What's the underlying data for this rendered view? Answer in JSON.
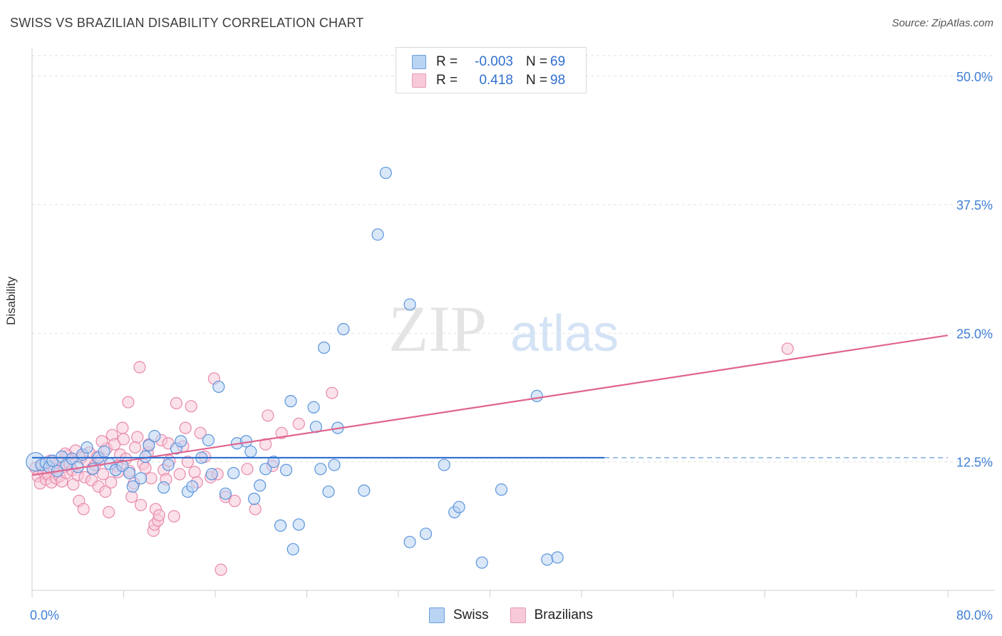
{
  "title": "SWISS VS BRAZILIAN DISABILITY CORRELATION CHART",
  "source": "Source: ZipAtlas.com",
  "watermark": {
    "zip": "ZIP",
    "atlas": "atlas"
  },
  "legend": {
    "rows": [
      {
        "r_label": "R =",
        "r_value": "-0.003",
        "n_label": "N =",
        "n_value": "69"
      },
      {
        "r_label": "R =",
        "r_value": "0.418",
        "n_label": "N =",
        "n_value": "98"
      }
    ]
  },
  "bottom_legend": {
    "swiss": "Swiss",
    "brazilians": "Brazilians"
  },
  "colors": {
    "swiss_fill": "#b9d3f2",
    "swiss_stroke": "#5b95dc",
    "swiss_line": "#2f6fcf",
    "braz_fill": "#f8c9d8",
    "braz_stroke": "#e88aab",
    "braz_line": "#e0648f",
    "tick_text": "#3f7fd6",
    "grid": "#e2e2e2"
  },
  "chart_data": {
    "type": "scatter",
    "title": "SWISS VS BRAZILIAN DISABILITY CORRELATION CHART",
    "xlabel": "",
    "ylabel": "Disability",
    "xlim": [
      0,
      80
    ],
    "ylim": [
      0,
      52
    ],
    "x_tick_labels": [
      "0.0%",
      "80.0%"
    ],
    "y_ticks": [
      12.5,
      25.0,
      37.5,
      50.0
    ],
    "y_tick_labels": [
      "12.5%",
      "25.0%",
      "37.5%",
      "50.0%"
    ],
    "grid": true,
    "legend_position": "top-center",
    "series": [
      {
        "name": "Swiss",
        "r": "-0.003",
        "n": "69",
        "trend": {
          "x": [
            0,
            50
          ],
          "y": [
            12.9,
            12.9
          ],
          "dashed_to": 80
        },
        "points": [
          [
            0.3,
            12.5
          ],
          [
            0.8,
            12.2
          ],
          [
            1.2,
            12.4
          ],
          [
            1.5,
            12.0
          ],
          [
            1.8,
            12.6
          ],
          [
            2.2,
            11.6
          ],
          [
            2.6,
            13.0
          ],
          [
            3.0,
            12.2
          ],
          [
            3.5,
            12.8
          ],
          [
            4.0,
            12.0
          ],
          [
            4.4,
            13.2
          ],
          [
            4.8,
            13.9
          ],
          [
            5.3,
            11.8
          ],
          [
            5.8,
            12.9
          ],
          [
            6.3,
            13.5
          ],
          [
            6.8,
            12.3
          ],
          [
            7.3,
            11.7
          ],
          [
            7.9,
            12.1
          ],
          [
            8.5,
            11.4
          ],
          [
            8.8,
            10.1
          ],
          [
            9.5,
            10.9
          ],
          [
            9.9,
            13.0
          ],
          [
            10.2,
            14.1
          ],
          [
            10.7,
            15.0
          ],
          [
            11.5,
            10.0
          ],
          [
            11.9,
            12.2
          ],
          [
            12.6,
            13.8
          ],
          [
            13.0,
            14.5
          ],
          [
            13.6,
            9.6
          ],
          [
            14.0,
            10.1
          ],
          [
            14.8,
            12.9
          ],
          [
            15.4,
            14.6
          ],
          [
            15.7,
            11.3
          ],
          [
            16.3,
            19.8
          ],
          [
            16.9,
            9.4
          ],
          [
            17.6,
            11.4
          ],
          [
            17.9,
            14.3
          ],
          [
            18.7,
            14.5
          ],
          [
            19.1,
            13.5
          ],
          [
            19.4,
            8.9
          ],
          [
            19.9,
            10.2
          ],
          [
            20.4,
            11.8
          ],
          [
            21.1,
            12.5
          ],
          [
            21.7,
            6.3
          ],
          [
            22.2,
            11.7
          ],
          [
            22.6,
            18.4
          ],
          [
            22.8,
            4.0
          ],
          [
            23.3,
            6.4
          ],
          [
            24.6,
            17.8
          ],
          [
            24.8,
            15.9
          ],
          [
            25.2,
            11.8
          ],
          [
            25.5,
            23.6
          ],
          [
            25.9,
            9.6
          ],
          [
            26.4,
            12.2
          ],
          [
            26.7,
            15.8
          ],
          [
            27.2,
            25.4
          ],
          [
            29.0,
            9.7
          ],
          [
            30.2,
            34.6
          ],
          [
            30.9,
            40.6
          ],
          [
            33.0,
            27.8
          ],
          [
            33.0,
            4.7
          ],
          [
            34.4,
            5.5
          ],
          [
            36.0,
            12.2
          ],
          [
            36.9,
            7.6
          ],
          [
            37.3,
            8.1
          ],
          [
            39.3,
            2.7
          ],
          [
            41.0,
            9.8
          ],
          [
            44.1,
            18.9
          ],
          [
            45.0,
            3.0
          ],
          [
            45.9,
            3.2
          ]
        ]
      },
      {
        "name": "Brazilians",
        "r": "0.418",
        "n": "98",
        "trend": {
          "x": [
            0,
            80
          ],
          "y": [
            11.2,
            24.8
          ]
        },
        "points": [
          [
            0.3,
            11.9
          ],
          [
            0.5,
            11.1
          ],
          [
            0.7,
            10.4
          ],
          [
            0.9,
            12.2
          ],
          [
            1.0,
            11.5
          ],
          [
            1.2,
            10.8
          ],
          [
            1.4,
            11.3
          ],
          [
            1.6,
            12.6
          ],
          [
            1.7,
            10.5
          ],
          [
            1.9,
            11.8
          ],
          [
            2.1,
            10.9
          ],
          [
            2.3,
            12.4
          ],
          [
            2.4,
            11.1
          ],
          [
            2.6,
            10.6
          ],
          [
            2.8,
            12.0
          ],
          [
            3.0,
            11.4
          ],
          [
            3.1,
            13.1
          ],
          [
            3.3,
            12.3
          ],
          [
            3.5,
            11.7
          ],
          [
            3.6,
            10.3
          ],
          [
            3.8,
            13.6
          ],
          [
            4.0,
            11.2
          ],
          [
            4.1,
            8.7
          ],
          [
            4.3,
            12.9
          ],
          [
            4.5,
            7.9
          ],
          [
            4.6,
            11.0
          ],
          [
            4.8,
            12.5
          ],
          [
            5.0,
            13.4
          ],
          [
            5.2,
            10.7
          ],
          [
            5.3,
            11.9
          ],
          [
            5.5,
            12.2
          ],
          [
            5.7,
            13.0
          ],
          [
            5.8,
            10.1
          ],
          [
            6.0,
            12.7
          ],
          [
            6.2,
            11.3
          ],
          [
            6.4,
            9.6
          ],
          [
            6.5,
            13.8
          ],
          [
            6.7,
            7.6
          ],
          [
            6.9,
            10.5
          ],
          [
            7.0,
            15.1
          ],
          [
            7.2,
            14.2
          ],
          [
            7.4,
            12.1
          ],
          [
            7.5,
            11.5
          ],
          [
            7.7,
            13.2
          ],
          [
            7.9,
            15.8
          ],
          [
            8.0,
            14.7
          ],
          [
            8.2,
            12.8
          ],
          [
            8.4,
            18.3
          ],
          [
            8.5,
            11.6
          ],
          [
            8.7,
            9.1
          ],
          [
            8.9,
            10.4
          ],
          [
            9.0,
            13.9
          ],
          [
            9.2,
            14.9
          ],
          [
            9.4,
            21.7
          ],
          [
            9.5,
            8.3
          ],
          [
            9.7,
            12.3
          ],
          [
            9.9,
            11.9
          ],
          [
            10.1,
            13.4
          ],
          [
            10.2,
            14.2
          ],
          [
            10.4,
            10.9
          ],
          [
            10.6,
            5.8
          ],
          [
            10.7,
            6.4
          ],
          [
            10.8,
            7.9
          ],
          [
            11.0,
            6.8
          ],
          [
            11.1,
            7.3
          ],
          [
            11.3,
            14.6
          ],
          [
            11.5,
            11.7
          ],
          [
            11.7,
            10.8
          ],
          [
            11.9,
            14.3
          ],
          [
            12.0,
            12.6
          ],
          [
            12.4,
            7.2
          ],
          [
            12.6,
            18.2
          ],
          [
            12.9,
            11.3
          ],
          [
            13.2,
            14.0
          ],
          [
            13.4,
            15.8
          ],
          [
            13.6,
            12.5
          ],
          [
            13.9,
            17.9
          ],
          [
            14.2,
            11.5
          ],
          [
            14.4,
            10.5
          ],
          [
            14.7,
            15.3
          ],
          [
            15.1,
            13.0
          ],
          [
            15.6,
            11.0
          ],
          [
            15.9,
            20.6
          ],
          [
            16.2,
            11.3
          ],
          [
            16.5,
            2.0
          ],
          [
            16.9,
            9.1
          ],
          [
            17.7,
            8.7
          ],
          [
            18.8,
            11.8
          ],
          [
            19.5,
            7.9
          ],
          [
            20.4,
            14.2
          ],
          [
            20.6,
            17.0
          ],
          [
            21.0,
            12.1
          ],
          [
            21.8,
            15.3
          ],
          [
            23.3,
            16.2
          ],
          [
            26.2,
            19.2
          ],
          [
            66.0,
            23.5
          ],
          [
            2.9,
            13.3
          ],
          [
            6.1,
            14.5
          ]
        ]
      }
    ]
  }
}
